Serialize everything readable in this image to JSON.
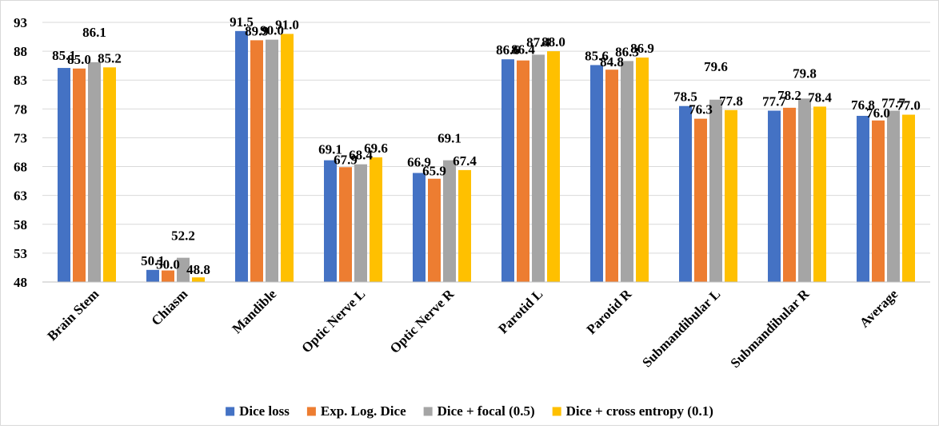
{
  "chart_data": {
    "type": "bar",
    "categories": [
      "Brain Stem",
      "Chiasm",
      "Mandible",
      "Optic Nerve L",
      "Optic Nerve R",
      "Parotid L",
      "Parotid R",
      "Submandibular L",
      "Submandibular R",
      "Average"
    ],
    "series": [
      {
        "name": "Dice loss",
        "color": "#4472C4",
        "values": [
          85.1,
          50.1,
          91.5,
          69.1,
          66.9,
          86.6,
          85.6,
          78.5,
          77.7,
          76.8
        ]
      },
      {
        "name": "Exp. Log. Dice",
        "color": "#ED7D31",
        "values": [
          85.0,
          50.0,
          89.9,
          67.9,
          65.9,
          86.4,
          84.8,
          76.3,
          78.2,
          76.0
        ]
      },
      {
        "name": "Dice + focal (0.5)",
        "color": "#A5A5A5",
        "values": [
          86.1,
          52.2,
          90.0,
          68.4,
          69.1,
          87.4,
          86.3,
          79.6,
          79.8,
          77.7
        ]
      },
      {
        "name": "Dice + cross entropy (0.1)",
        "color": "#FFC000",
        "values": [
          85.2,
          48.8,
          91.0,
          69.6,
          67.4,
          88.0,
          86.9,
          77.8,
          78.4,
          77.0
        ]
      }
    ],
    "ylim": [
      48,
      93
    ],
    "yticks": [
      48,
      53,
      58,
      63,
      68,
      73,
      78,
      83,
      88,
      93
    ],
    "grid": true,
    "legend": "bottom",
    "data_labels": true,
    "title": "",
    "xlabel": "",
    "ylabel": ""
  }
}
